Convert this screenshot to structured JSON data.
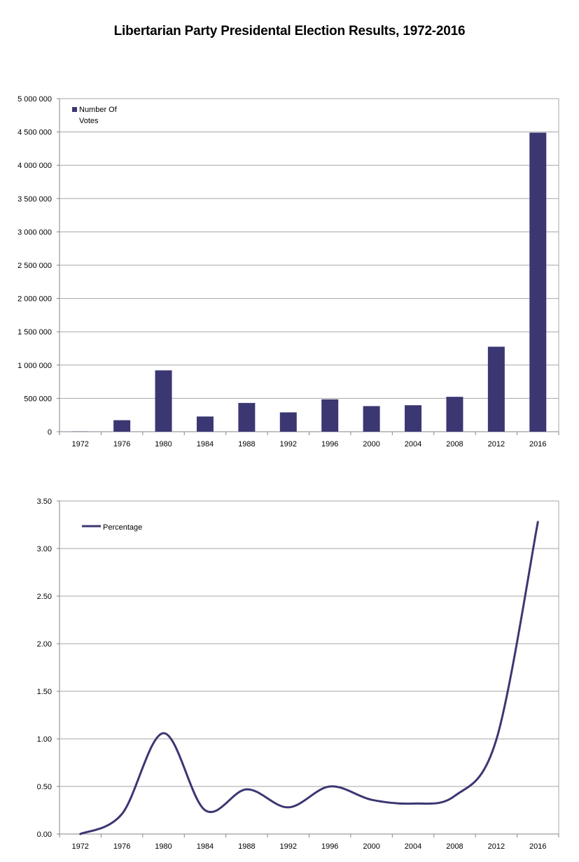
{
  "title": "Libertarian Party Presidental Election Results, 1972-2016",
  "colors": {
    "series": "#3b3772",
    "grid": "#a6a6a6",
    "axis": "#868686"
  },
  "chart_data": [
    {
      "type": "bar",
      "categories": [
        "1972",
        "1976",
        "1980",
        "1984",
        "1988",
        "1992",
        "1996",
        "2000",
        "2004",
        "2008",
        "2012",
        "2016"
      ],
      "series": [
        {
          "name": "Number Of Votes",
          "values": [
            3674,
            172553,
            921128,
            228111,
            431750,
            290087,
            485759,
            384431,
            397265,
            523715,
            1275971,
            4489341
          ]
        }
      ],
      "ylim": [
        0,
        5000000
      ],
      "yticks": [
        "0",
        "500 000",
        "1 000 000",
        "1 500 000",
        "2 000 000",
        "2 500 000",
        "3 000 000",
        "3 500 000",
        "4 000 000",
        "4 500 000",
        "5 000 000"
      ],
      "legend_lines": [
        "Number Of",
        "Votes"
      ],
      "legend": "top-left",
      "grid": true
    },
    {
      "type": "line",
      "categories": [
        "1972",
        "1976",
        "1980",
        "1984",
        "1988",
        "1992",
        "1996",
        "2000",
        "2004",
        "2008",
        "2012",
        "2016"
      ],
      "series": [
        {
          "name": "Percentage",
          "values": [
            0.0,
            0.21,
            1.06,
            0.25,
            0.47,
            0.28,
            0.5,
            0.36,
            0.32,
            0.4,
            0.99,
            3.28
          ]
        }
      ],
      "ylim": [
        0,
        3.5
      ],
      "yticks": [
        "0.00",
        "0.50",
        "1.00",
        "1.50",
        "2.00",
        "2.50",
        "3.00",
        "3.50"
      ],
      "legend": "top-left",
      "smooth": true,
      "grid": true
    }
  ]
}
